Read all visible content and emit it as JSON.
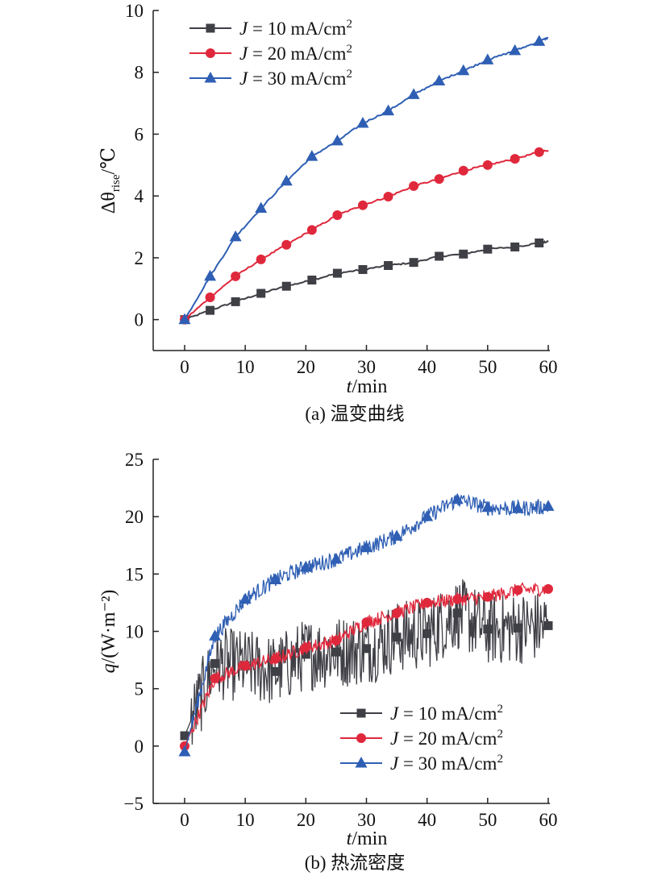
{
  "colors": {
    "j10": "#3f3f46",
    "j20": "#e0283c",
    "j30": "#2f5fb4",
    "axis": "#222222"
  },
  "chart_data": [
    {
      "type": "line",
      "caption": "(a) 温变曲线",
      "xlabel_italic": "t",
      "xlabel_rest": "/min",
      "ylabel_prefix": "Δθ",
      "ylabel_sub": "rise",
      "ylabel_suffix": "/℃",
      "xlim": [
        -5,
        60
      ],
      "ylim": [
        -1,
        10
      ],
      "xticks": [
        0,
        10,
        20,
        30,
        40,
        50,
        60
      ],
      "yticks": [
        0,
        2,
        4,
        6,
        8,
        10
      ],
      "legend_position": "top-left",
      "series": [
        {
          "name": "J = 10 mA/cm2",
          "label_j": "J",
          "label_rest": " = 10 mA/cm",
          "label_sup": "2",
          "marker": "square",
          "color_key": "j10",
          "x": [
            0,
            4.2,
            8.4,
            12.6,
            16.8,
            21,
            25.2,
            29.4,
            33.6,
            37.8,
            42,
            46,
            50,
            54.5,
            58.5,
            60
          ],
          "y": [
            0,
            0.3,
            0.58,
            0.85,
            1.08,
            1.28,
            1.5,
            1.62,
            1.75,
            1.85,
            2.05,
            2.12,
            2.28,
            2.35,
            2.48,
            2.52
          ]
        },
        {
          "name": "J = 20 mA/cm2",
          "label_j": "J",
          "label_rest": " = 20 mA/cm",
          "label_sup": "2",
          "marker": "circle",
          "color_key": "j20",
          "x": [
            0,
            4.2,
            8.4,
            12.6,
            16.8,
            21,
            25.2,
            29.4,
            33.6,
            37.8,
            42,
            46,
            50,
            54.5,
            58.5,
            60
          ],
          "y": [
            0,
            0.72,
            1.4,
            1.95,
            2.42,
            2.9,
            3.38,
            3.7,
            3.98,
            4.32,
            4.55,
            4.82,
            5.0,
            5.2,
            5.42,
            5.48
          ]
        },
        {
          "name": "J = 30 mA/cm2",
          "label_j": "J",
          "label_rest": " = 30 mA/cm",
          "label_sup": "2",
          "marker": "triangle",
          "color_key": "j30",
          "x": [
            0,
            4.2,
            8.4,
            12.6,
            16.8,
            21,
            25.2,
            29.4,
            33.6,
            37.8,
            42,
            46,
            50,
            54.5,
            58.5,
            60
          ],
          "y": [
            0,
            1.4,
            2.68,
            3.6,
            4.48,
            5.28,
            5.78,
            6.35,
            6.75,
            7.28,
            7.72,
            8.05,
            8.4,
            8.7,
            9.0,
            9.12
          ]
        }
      ]
    },
    {
      "type": "line",
      "caption": "(b) 热流密度",
      "xlabel_italic": "t",
      "xlabel_rest": "/min",
      "ylabel_prefix": "q",
      "ylabel_sub": "",
      "ylabel_suffix": "/(W·m⁻²)",
      "xlim": [
        -5,
        60
      ],
      "ylim": [
        -5,
        25
      ],
      "xticks": [
        0,
        10,
        20,
        30,
        40,
        50,
        60
      ],
      "yticks": [
        -5,
        0,
        5,
        10,
        15,
        20,
        25
      ],
      "legend_position": "bottom-right",
      "series": [
        {
          "name": "J = 10 mA/cm2",
          "label_j": "J",
          "label_rest": " = 10 mA/cm",
          "label_sup": "2",
          "marker": "square",
          "color_key": "j10",
          "x": [
            0,
            5,
            10,
            15,
            20,
            25,
            30,
            35,
            40,
            45,
            50,
            55,
            60
          ],
          "y": [
            0.9,
            7.2,
            7.0,
            6.5,
            8.0,
            8.2,
            8.5,
            9.5,
            9.8,
            11.6,
            10.2,
            10.3,
            10.5
          ]
        },
        {
          "name": "J = 20 mA/cm2",
          "label_j": "J",
          "label_rest": " = 20 mA/cm",
          "label_sup": "2",
          "marker": "circle",
          "color_key": "j20",
          "x": [
            0,
            5,
            10,
            15,
            20,
            25,
            30,
            35,
            40,
            45,
            50,
            55,
            60
          ],
          "y": [
            0,
            5.9,
            7.0,
            7.6,
            8.6,
            9.2,
            10.8,
            11.6,
            12.5,
            12.8,
            13.0,
            13.6,
            13.7
          ]
        },
        {
          "name": "J = 30 mA/cm2",
          "label_j": "J",
          "label_rest": " = 30 mA/cm",
          "label_sup": "2",
          "marker": "triangle",
          "color_key": "j30",
          "x": [
            0,
            5,
            10,
            15,
            20,
            25,
            30,
            35,
            40,
            45,
            50,
            55,
            60
          ],
          "y": [
            -0.5,
            9.6,
            12.8,
            14.5,
            15.6,
            16.3,
            17.3,
            18.3,
            20.0,
            21.5,
            20.8,
            20.7,
            20.9
          ]
        }
      ]
    }
  ]
}
